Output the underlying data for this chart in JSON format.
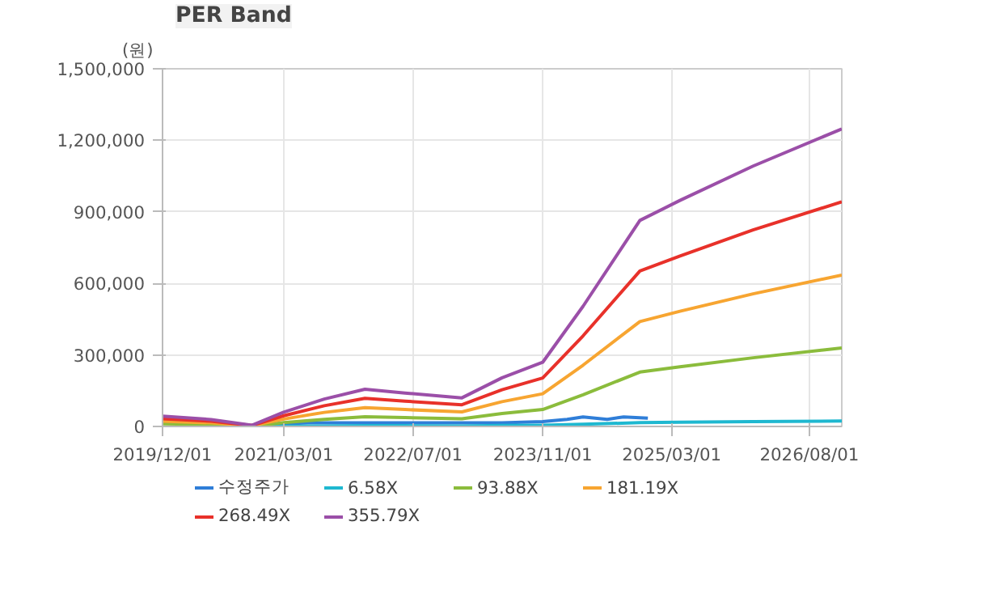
{
  "chart_data": {
    "type": "line",
    "title": "PER Band",
    "ylabel": "(원)",
    "x": [
      "2019-12",
      "2020-06",
      "2020-11",
      "2021-03",
      "2021-08",
      "2022-01",
      "2022-06",
      "2023-01",
      "2023-06",
      "2023-11",
      "2024-04",
      "2024-11",
      "2025-04",
      "2026-01",
      "2026-12"
    ],
    "series": [
      {
        "name": "수정주가",
        "color": "#2f7ed8",
        "x": [
          "2020-11",
          "2021-06",
          "2022-06",
          "2023-06",
          "2023-11",
          "2024-02",
          "2024-04",
          "2024-07",
          "2024-09",
          "2024-12"
        ],
        "values": [
          5000,
          15000,
          15000,
          15000,
          20000,
          30000,
          40000,
          30000,
          40000,
          35000
        ]
      },
      {
        "name": "6.58X",
        "color": "#1fb8d0",
        "values": [
          null,
          null,
          0,
          1000,
          2000,
          3000,
          3000,
          2000,
          4000,
          5000,
          9000,
          16000,
          18000,
          20000,
          23000
        ]
      },
      {
        "name": "93.88X",
        "color": "#8bbc3c",
        "values": [
          11000,
          8000,
          1000,
          16000,
          30000,
          41000,
          37000,
          32000,
          54000,
          71000,
          133000,
          228000,
          250000,
          288000,
          329000
        ]
      },
      {
        "name": "181.19X",
        "color": "#f7a531",
        "values": [
          22000,
          15000,
          3000,
          31000,
          59000,
          79000,
          71000,
          61000,
          104000,
          137000,
          257000,
          440000,
          483000,
          556000,
          635000
        ]
      },
      {
        "name": "268.49X",
        "color": "#e8312a",
        "values": [
          32000,
          22000,
          4000,
          45000,
          87000,
          118000,
          106000,
          91000,
          154000,
          203000,
          380000,
          652000,
          715000,
          824000,
          942000
        ]
      },
      {
        "name": "355.79X",
        "color": "#9b4fa8",
        "values": [
          43000,
          29000,
          5000,
          60000,
          115000,
          156000,
          140000,
          120000,
          204000,
          269000,
          504000,
          864000,
          948000,
          1092000,
          1248000
        ]
      }
    ],
    "xlim": [
      "2019-12-01",
      "2026-12-01"
    ],
    "xticks": [
      {
        "value": "2019-12-01",
        "label": "2019/12/01"
      },
      {
        "value": "2021-03-01",
        "label": "2021/03/01"
      },
      {
        "value": "2022-07-01",
        "label": "2022/07/01"
      },
      {
        "value": "2023-11-01",
        "label": "2023/11/01"
      },
      {
        "value": "2025-03-01",
        "label": "2025/03/01"
      },
      {
        "value": "2026-08-01",
        "label": "2026/08/01"
      }
    ],
    "ylim": [
      0,
      1500000
    ],
    "yticks": [
      {
        "value": 0,
        "label": "0"
      },
      {
        "value": 300000,
        "label": "300,000"
      },
      {
        "value": 600000,
        "label": "600,000"
      },
      {
        "value": 900000,
        "label": "900,000"
      },
      {
        "value": 1200000,
        "label": "1,200,000"
      },
      {
        "value": 1500000,
        "label": "1,500,000"
      }
    ],
    "grid": true,
    "legend": "bottom",
    "marker": "none",
    "line_style": "solid"
  }
}
